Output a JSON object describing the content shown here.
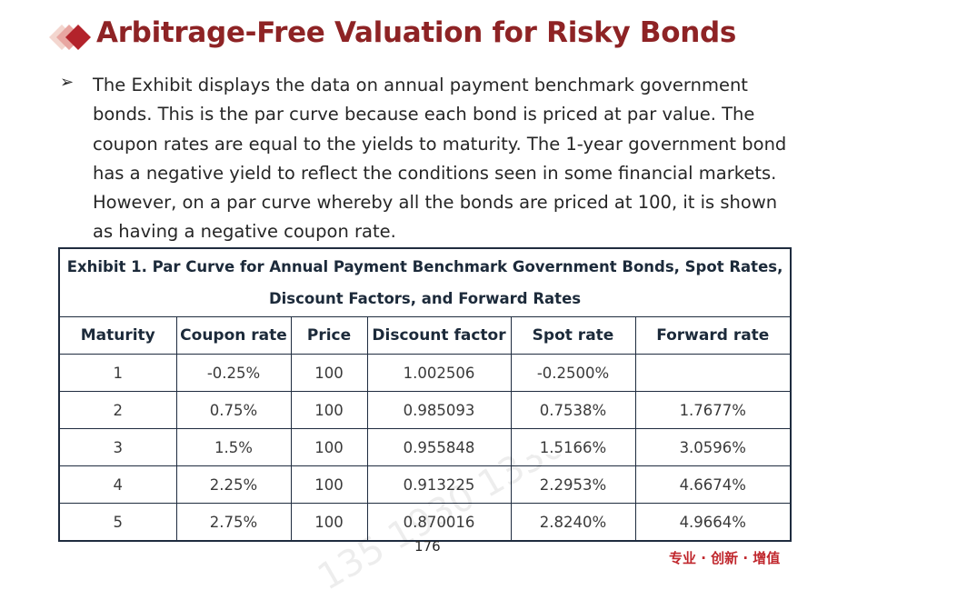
{
  "title": "Arbitrage-Free Valuation for Risky Bonds",
  "bullet": {
    "marker": "➢",
    "text": "The Exhibit displays the data on annual payment benchmark government bonds. This is the par curve because each bond is priced at par value. The coupon rates are equal to the yields to maturity. The 1-year government bond has a negative yield to reflect the conditions seen in some financial markets. However, on a par curve whereby all the bonds are priced at 100, it is shown as having a negative coupon rate."
  },
  "exhibit": {
    "caption_line1": "Exhibit 1. Par Curve for Annual Payment Benchmark Government Bonds, Spot Rates,",
    "caption_line2": "Discount Factors, and Forward Rates",
    "headers": [
      "Maturity",
      "Coupon rate",
      "Price",
      "Discount factor",
      "Spot rate",
      "Forward rate"
    ],
    "rows": [
      [
        "1",
        "-0.25%",
        "100",
        "1.002506",
        "-0.2500%",
        ""
      ],
      [
        "2",
        "0.75%",
        "100",
        "0.985093",
        "0.7538%",
        "1.7677%"
      ],
      [
        "3",
        "1.5%",
        "100",
        "0.955848",
        "1.5166%",
        "3.0596%"
      ],
      [
        "4",
        "2.25%",
        "100",
        "0.913225",
        "2.2953%",
        "4.6674%"
      ],
      [
        "5",
        "2.75%",
        "100",
        "0.870016",
        "2.8240%",
        "4.9664%"
      ]
    ]
  },
  "page_number": "176",
  "slogan": "专业 · 创新 · 增值",
  "watermark": "135 1930 1330",
  "colors": {
    "title": "#8e2325",
    "slogan": "#c0272d",
    "table_border": "#1f2c3f"
  }
}
